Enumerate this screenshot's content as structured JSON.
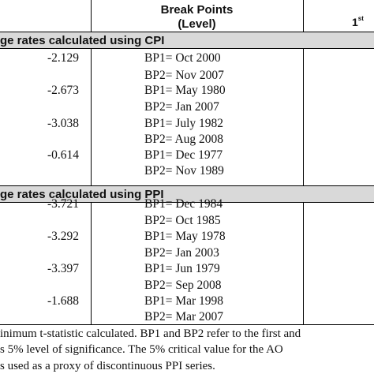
{
  "header": {
    "title_line1": "Break Points",
    "title_line2": "(Level)",
    "right_col_text": "1",
    "right_col_sup": "st"
  },
  "sections": [
    {
      "title": "ge rates calculated using CPI",
      "rows": [
        {
          "tstat": "-2.129",
          "bp1": "BP1= Oct 2000",
          "bp2": "BP2= Nov 2007"
        },
        {
          "tstat": "-2.673",
          "bp1": "BP1= May 1980",
          "bp2": "BP2= Jan 2007"
        },
        {
          "tstat": "-3.038",
          "bp1": "BP1= July 1982",
          "bp2": "BP2= Aug 2008"
        },
        {
          "tstat": "-0.614",
          "bp1": "BP1= Dec 1977",
          "bp2": "BP2= Nov 1989"
        }
      ]
    },
    {
      "title": "ge rates calculated using PPI",
      "rows": [
        {
          "tstat": "-3.721",
          "bp1": "BP1= Dec 1984",
          "bp2": "BP2= Oct 1985"
        },
        {
          "tstat": "-3.292",
          "bp1": "BP1= May 1978",
          "bp2": "BP2= Jan 2003"
        },
        {
          "tstat": "-3.397",
          "bp1": "BP1= Jun 1979",
          "bp2": "BP2= Sep 2008"
        },
        {
          "tstat": "-1.688",
          "bp1": "BP1= Mar 1998",
          "bp2": "BP2= Mar 2007"
        }
      ]
    }
  ],
  "footnote": [
    "inimum t-statistic calculated. BP1 and BP2 refer to the first and",
    "s 5% level of significance. The 5% critical value for the AO",
    "s used as a proxy of discontinuous PPI series."
  ]
}
